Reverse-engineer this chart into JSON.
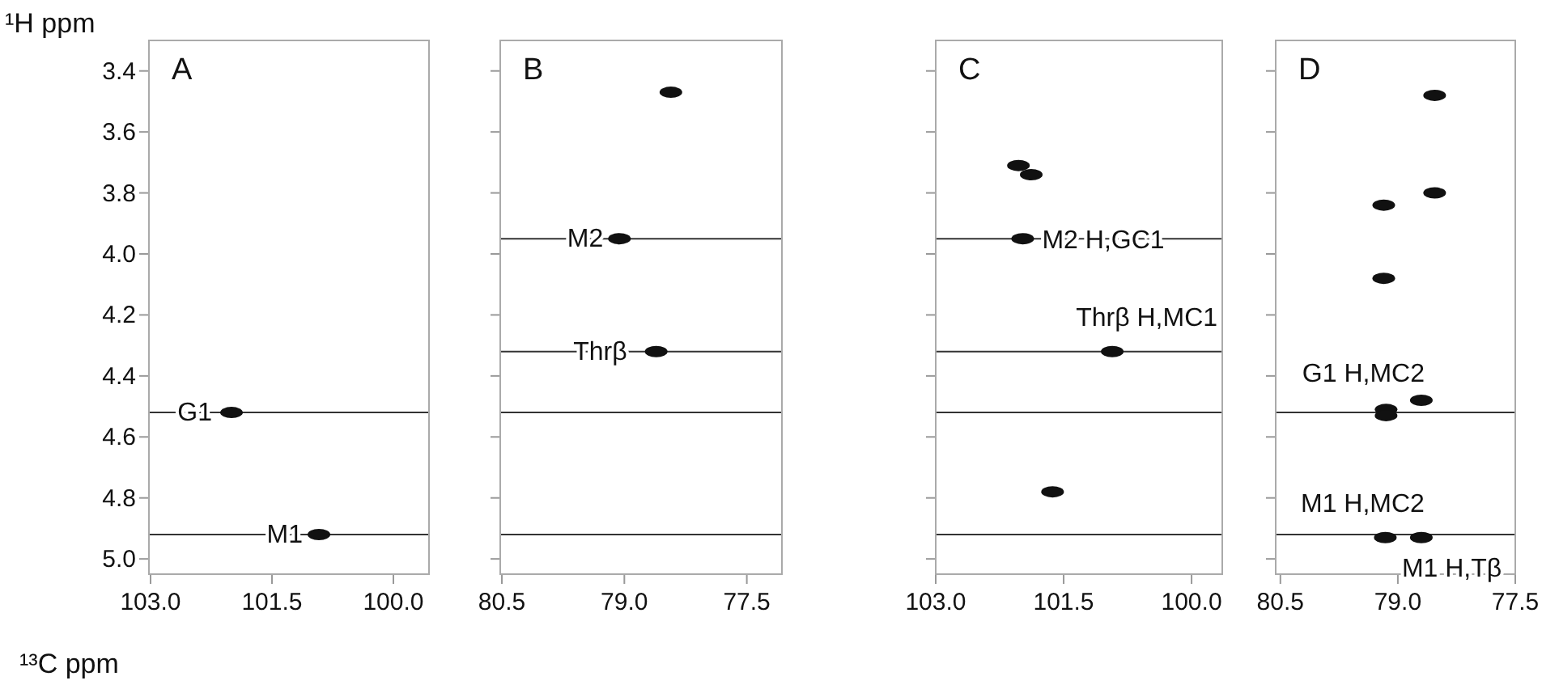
{
  "chart_data": [
    {
      "type": "scatter",
      "title": "A",
      "ylabel": "¹H ppm",
      "xlabel": "¹³C ppm",
      "color": "#111111",
      "x": [
        102.0,
        100.92
      ],
      "values": [
        4.52,
        4.92
      ],
      "xlim": [
        103.02,
        99.56
      ],
      "xticks": [
        {
          "value": 103,
          "label": "103.0"
        },
        101.5,
        {
          "value": 100,
          "label": "100.0"
        }
      ],
      "ylim": [
        5.05,
        3.3
      ],
      "yticks": [
        3.4,
        3.6,
        3.8,
        {
          "value": 4,
          "label": "4.0"
        },
        4.2,
        4.4,
        4.6,
        4.8,
        {
          "value": 5,
          "label": "5.0"
        }
      ],
      "annotations": [
        {
          "text": "G1",
          "x": 102.0,
          "y": 4.52
        },
        {
          "text": "M1",
          "x": 100.92,
          "y": 4.92
        }
      ],
      "ref_lines": [
        {
          "axis": "y",
          "value": 4.52
        },
        {
          "axis": "y",
          "value": 4.92
        }
      ]
    },
    {
      "type": "scatter",
      "title": "B",
      "color": "#111111",
      "tick_labels": "x",
      "x": [
        78.43,
        79.06,
        78.61
      ],
      "values": [
        3.47,
        3.95,
        4.32
      ],
      "xlim": [
        80.52,
        77.07
      ],
      "xticks": [
        80.5,
        {
          "value": 79,
          "label": "79.0"
        },
        77.5
      ],
      "ylim": [
        5.05,
        3.3
      ],
      "yticks": [
        {
          "value": 3.4,
          "label": null
        },
        {
          "value": 3.6,
          "label": null
        },
        {
          "value": 3.8,
          "label": null
        },
        {
          "value": 4,
          "label": null
        },
        {
          "value": 4.2,
          "label": null
        },
        {
          "value": 4.4,
          "label": null
        },
        {
          "value": 4.6,
          "label": null
        },
        {
          "value": 4.8,
          "label": null
        },
        {
          "value": 5,
          "label": null
        }
      ],
      "annotations": [
        {
          "text": "M2",
          "x": 79.06,
          "y": 3.95
        },
        {
          "text": "Thrβ",
          "x": 78.61,
          "y": 4.32
        }
      ],
      "ref_lines": [
        {
          "axis": "y",
          "value": 3.95
        },
        {
          "axis": "y",
          "value": 4.32
        },
        {
          "axis": "y",
          "value": 4.52
        },
        {
          "axis": "y",
          "value": 4.92
        }
      ]
    },
    {
      "type": "scatter",
      "title": "C",
      "color": "#111111",
      "tick_labels": "x",
      "x": [
        102.03,
        101.88,
        101.98,
        100.93,
        101.63
      ],
      "values": [
        3.71,
        3.74,
        3.95,
        4.32,
        4.78
      ],
      "xlim": [
        103.0,
        99.64
      ],
      "xticks": [
        {
          "value": 103,
          "label": "103.0"
        },
        101.5,
        {
          "value": 100,
          "label": "100.0"
        }
      ],
      "ylim": [
        5.05,
        3.3
      ],
      "yticks": [
        {
          "value": 3.4,
          "label": null
        },
        {
          "value": 3.6,
          "label": null
        },
        {
          "value": 3.8,
          "label": null
        },
        {
          "value": 4,
          "label": null
        },
        {
          "value": 4.2,
          "label": null
        },
        {
          "value": 4.4,
          "label": null
        },
        {
          "value": 4.6,
          "label": null
        },
        {
          "value": 4.8,
          "label": null
        },
        {
          "value": 5,
          "label": null
        }
      ],
      "annotations": [
        {
          "text": "M2 H,GC1",
          "x": 101.98,
          "y": 3.95
        },
        {
          "text": "Thrβ H,MC1",
          "x": 100.93,
          "y": 4.32
        }
      ],
      "ref_lines": [
        {
          "axis": "y",
          "value": 3.95
        },
        {
          "axis": "y",
          "value": 4.32
        },
        {
          "axis": "y",
          "value": 4.52
        },
        {
          "axis": "y",
          "value": 4.92
        }
      ]
    },
    {
      "type": "scatter",
      "title": "D",
      "color": "#111111",
      "tick_labels": "x",
      "x": [
        78.53,
        78.53,
        79.18,
        79.18,
        78.7,
        79.15,
        79.15,
        79.16,
        78.7
      ],
      "values": [
        3.48,
        3.8,
        3.84,
        4.08,
        4.48,
        4.51,
        4.53,
        4.93,
        4.93
      ],
      "xlim": [
        80.56,
        77.5
      ],
      "xticks": [
        80.5,
        {
          "value": 79,
          "label": "79.0"
        },
        77.5
      ],
      "ylim": [
        5.05,
        3.3
      ],
      "yticks": [
        {
          "value": 3.4,
          "label": null
        },
        {
          "value": 3.6,
          "label": null
        },
        {
          "value": 3.8,
          "label": null
        },
        {
          "value": 4,
          "label": null
        },
        {
          "value": 4.2,
          "label": null
        },
        {
          "value": 4.4,
          "label": null
        },
        {
          "value": 4.6,
          "label": null
        },
        {
          "value": 4.8,
          "label": null
        },
        {
          "value": 5,
          "label": null
        }
      ],
      "annotations": [
        {
          "text": "G1 H,MC2",
          "x": 79.15,
          "y": 4.51
        },
        {
          "text": "M1 H,MC2",
          "x": 79.16,
          "y": 4.93
        },
        {
          "text": "M1 H,Tβ",
          "x": 78.7,
          "y": 4.93
        }
      ],
      "ref_lines": [
        {
          "axis": "y",
          "value": 4.52
        },
        {
          "axis": "y",
          "value": 4.92
        }
      ]
    }
  ]
}
